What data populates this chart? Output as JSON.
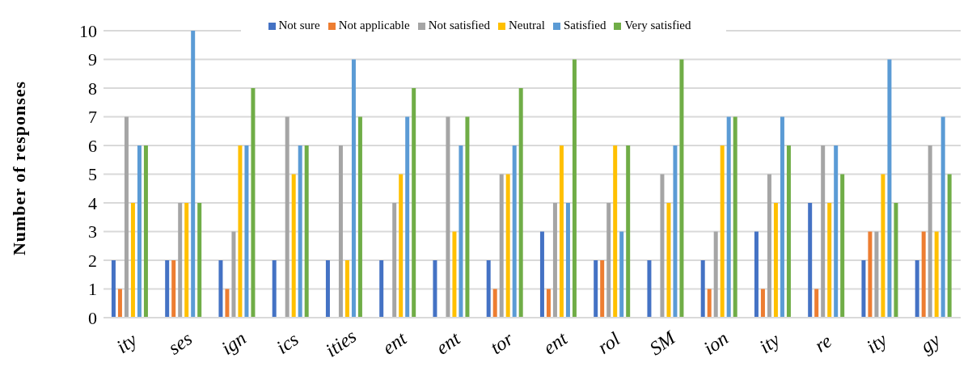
{
  "chart_data": {
    "type": "bar",
    "ylabel": "Number of responses",
    "categories": [
      "ity",
      "ses",
      "ign",
      "ics",
      "ities",
      "ent",
      "ent",
      "tor",
      "ent",
      "rol",
      "SM",
      "ion",
      "ity",
      "re",
      "ity",
      "gy"
    ],
    "series": [
      {
        "name": "Not sure",
        "color": "#4472c4",
        "values": [
          2,
          2,
          2,
          2,
          2,
          2,
          2,
          2,
          3,
          2,
          2,
          2,
          3,
          4,
          2,
          2
        ]
      },
      {
        "name": "Not applicable",
        "color": "#ed7d31",
        "values": [
          1,
          2,
          1,
          0,
          0,
          0,
          0,
          1,
          1,
          2,
          0,
          1,
          1,
          1,
          3,
          3
        ]
      },
      {
        "name": "Not satisfied",
        "color": "#a5a5a5",
        "values": [
          7,
          4,
          3,
          7,
          6,
          4,
          7,
          5,
          4,
          4,
          5,
          3,
          5,
          6,
          3,
          6
        ]
      },
      {
        "name": "Neutral",
        "color": "#ffc000",
        "values": [
          4,
          4,
          6,
          5,
          2,
          5,
          3,
          5,
          6,
          6,
          4,
          6,
          4,
          4,
          5,
          3
        ]
      },
      {
        "name": "Satisfied",
        "color": "#5b9bd5",
        "values": [
          6,
          10,
          6,
          6,
          9,
          7,
          6,
          6,
          4,
          3,
          6,
          7,
          7,
          6,
          9,
          7
        ]
      },
      {
        "name": "Very satisfied",
        "color": "#70ad47",
        "values": [
          6,
          4,
          8,
          6,
          7,
          8,
          7,
          8,
          9,
          6,
          9,
          7,
          6,
          5,
          4,
          5
        ]
      }
    ],
    "ylim": [
      0,
      10
    ],
    "yticks": [
      0,
      1,
      2,
      3,
      4,
      5,
      6,
      7,
      8,
      9,
      10
    ],
    "grid": "y",
    "legend": "top"
  }
}
